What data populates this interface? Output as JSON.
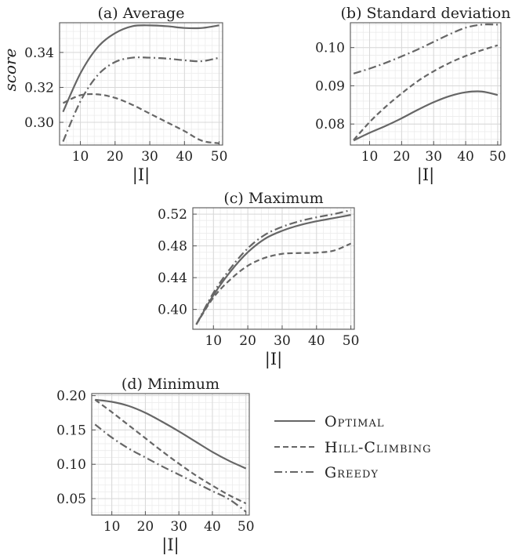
{
  "legend": {
    "items": [
      {
        "label": "Optimal",
        "dash": "solid"
      },
      {
        "label": "Hill-Climbing",
        "dash": "dashed"
      },
      {
        "label": "Greedy",
        "dash": "dashdot"
      }
    ]
  },
  "colors": {
    "line": "#666666",
    "grid_major": "#d8d8d8",
    "grid_minor": "#ececec",
    "frame": "#555555"
  },
  "chart_data": [
    {
      "type": "line",
      "title": "(a) Average",
      "xlabel": "|I|",
      "ylabel": "score",
      "xlim": [
        4,
        51
      ],
      "ylim": [
        0.287,
        0.357
      ],
      "xticks": [
        10,
        20,
        30,
        40,
        50
      ],
      "yticks": [
        0.3,
        0.32,
        0.34
      ],
      "ytick_labels": [
        "0.30",
        "0.32",
        "0.34"
      ],
      "x": [
        5,
        10,
        15,
        20,
        25,
        30,
        35,
        40,
        45,
        50
      ],
      "series": [
        {
          "name": "Optimal",
          "values": [
            0.306,
            0.328,
            0.343,
            0.351,
            0.355,
            0.3555,
            0.355,
            0.354,
            0.354,
            0.3555
          ]
        },
        {
          "name": "Hill-Climbing",
          "values": [
            0.311,
            0.3155,
            0.316,
            0.314,
            0.31,
            0.305,
            0.3,
            0.295,
            0.2895,
            0.288
          ]
        },
        {
          "name": "Greedy",
          "values": [
            0.289,
            0.312,
            0.327,
            0.3345,
            0.337,
            0.337,
            0.3365,
            0.3355,
            0.335,
            0.337
          ]
        }
      ]
    },
    {
      "type": "line",
      "title": "(b) Standard deviation",
      "xlabel": "|I|",
      "ylabel": "",
      "xlim": [
        4,
        51
      ],
      "ylim": [
        0.0745,
        0.1065
      ],
      "xticks": [
        10,
        20,
        30,
        40,
        50
      ],
      "yticks": [
        0.08,
        0.09,
        0.1
      ],
      "ytick_labels": [
        "0.08",
        "0.09",
        "0.10"
      ],
      "x": [
        5,
        10,
        15,
        20,
        25,
        30,
        35,
        40,
        45,
        50
      ],
      "series": [
        {
          "name": "Optimal",
          "values": [
            0.0757,
            0.0777,
            0.0795,
            0.0815,
            0.0837,
            0.0857,
            0.0873,
            0.0883,
            0.0885,
            0.0876
          ]
        },
        {
          "name": "Hill-Climbing",
          "values": [
            0.0758,
            0.0805,
            0.0845,
            0.088,
            0.0912,
            0.0938,
            0.096,
            0.0978,
            0.0993,
            0.1006
          ]
        },
        {
          "name": "Greedy",
          "values": [
            0.0932,
            0.0945,
            0.096,
            0.0977,
            0.0995,
            0.1015,
            0.1035,
            0.1052,
            0.106,
            0.106
          ]
        }
      ]
    },
    {
      "type": "line",
      "title": "(c) Maximum",
      "xlabel": "|I|",
      "ylabel": "",
      "xlim": [
        4,
        51
      ],
      "ylim": [
        0.375,
        0.528
      ],
      "xticks": [
        10,
        20,
        30,
        40,
        50
      ],
      "yticks": [
        0.4,
        0.44,
        0.48,
        0.52
      ],
      "ytick_labels": [
        "0.40",
        "0.44",
        "0.48",
        "0.52"
      ],
      "x": [
        5,
        10,
        15,
        20,
        25,
        30,
        35,
        40,
        45,
        50
      ],
      "series": [
        {
          "name": "Optimal",
          "values": [
            0.381,
            0.418,
            0.448,
            0.472,
            0.489,
            0.499,
            0.506,
            0.511,
            0.515,
            0.519
          ]
        },
        {
          "name": "Hill-Climbing",
          "values": [
            0.381,
            0.415,
            0.438,
            0.455,
            0.465,
            0.47,
            0.471,
            0.4715,
            0.474,
            0.483
          ]
        },
        {
          "name": "Greedy",
          "values": [
            0.381,
            0.421,
            0.452,
            0.477,
            0.494,
            0.504,
            0.511,
            0.516,
            0.52,
            0.525
          ]
        }
      ]
    },
    {
      "type": "line",
      "title": "(d) Minimum",
      "xlabel": "|I|",
      "ylabel": "",
      "xlim": [
        4,
        51
      ],
      "ylim": [
        0.026,
        0.203
      ],
      "xticks": [
        10,
        20,
        30,
        40,
        50
      ],
      "yticks": [
        0.05,
        0.1,
        0.15,
        0.2
      ],
      "ytick_labels": [
        "0.05",
        "0.10",
        "0.15",
        "0.20"
      ],
      "x": [
        5,
        10,
        15,
        20,
        25,
        30,
        35,
        40,
        45,
        50
      ],
      "series": [
        {
          "name": "Optimal",
          "values": [
            0.194,
            0.191,
            0.185,
            0.175,
            0.162,
            0.148,
            0.133,
            0.118,
            0.105,
            0.094
          ]
        },
        {
          "name": "Hill-Climbing",
          "values": [
            0.194,
            0.176,
            0.157,
            0.138,
            0.119,
            0.101,
            0.084,
            0.069,
            0.055,
            0.043
          ]
        },
        {
          "name": "Greedy",
          "values": [
            0.158,
            0.139,
            0.123,
            0.11,
            0.097,
            0.085,
            0.073,
            0.061,
            0.049,
            0.031
          ]
        }
      ]
    }
  ]
}
